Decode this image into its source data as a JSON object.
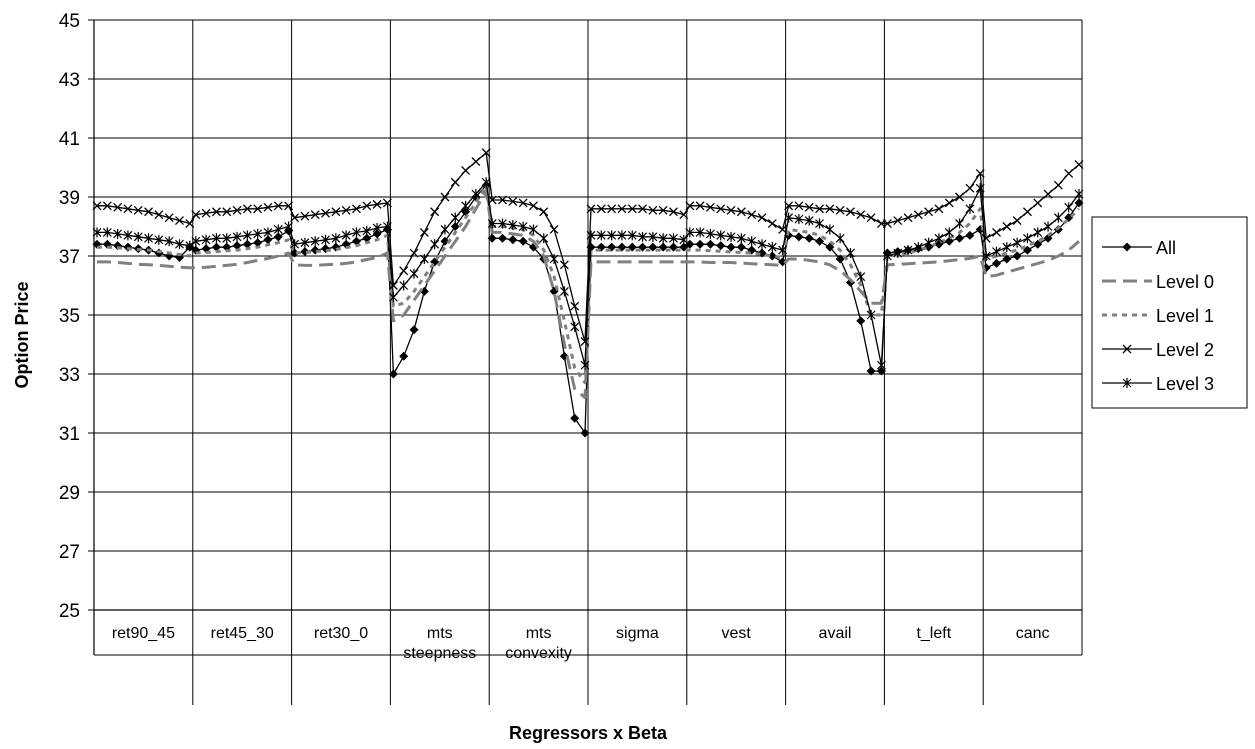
{
  "chart_data": {
    "type": "line",
    "title": "",
    "ylabel": "Option Price",
    "xlabel": "Regressors x Beta",
    "ylim": [
      25,
      45
    ],
    "yticks": [
      25,
      27,
      29,
      31,
      33,
      35,
      37,
      39,
      41,
      43,
      45
    ],
    "grid": true,
    "legend_position": "right",
    "categories": [
      [
        "ret90_45"
      ],
      [
        "ret45_30"
      ],
      [
        "ret30_0"
      ],
      [
        "mts",
        "steepness"
      ],
      [
        "mts",
        "convexity"
      ],
      [
        "sigma"
      ],
      [
        "vest"
      ],
      [
        "avail"
      ],
      [
        "t_left"
      ],
      [
        "canc"
      ]
    ],
    "series": [
      {
        "name": "All",
        "marker": "diamond",
        "style": "solid",
        "color": "#000000",
        "groups": [
          [
            37.4,
            37.4,
            37.35,
            37.3,
            37.25,
            37.2,
            37.1,
            37.0,
            36.95,
            37.3
          ],
          [
            37.2,
            37.25,
            37.3,
            37.3,
            37.35,
            37.4,
            37.45,
            37.55,
            37.65,
            37.85
          ],
          [
            37.1,
            37.15,
            37.2,
            37.25,
            37.3,
            37.4,
            37.5,
            37.6,
            37.75,
            37.9
          ],
          [
            33.0,
            33.6,
            34.5,
            35.8,
            36.8,
            37.5,
            38.0,
            38.5,
            39.0,
            39.4
          ],
          [
            37.6,
            37.6,
            37.55,
            37.5,
            37.3,
            36.9,
            35.8,
            33.6,
            31.5,
            31.0
          ],
          [
            37.3,
            37.3,
            37.3,
            37.3,
            37.3,
            37.3,
            37.3,
            37.3,
            37.3,
            37.3
          ],
          [
            37.4,
            37.4,
            37.4,
            37.35,
            37.3,
            37.3,
            37.2,
            37.1,
            37.0,
            36.8
          ],
          [
            37.7,
            37.65,
            37.6,
            37.5,
            37.3,
            36.9,
            36.1,
            34.8,
            33.1,
            33.1
          ],
          [
            37.1,
            37.15,
            37.2,
            37.25,
            37.3,
            37.4,
            37.5,
            37.6,
            37.7,
            37.9
          ],
          [
            36.6,
            36.75,
            36.9,
            37.0,
            37.2,
            37.4,
            37.6,
            37.9,
            38.3,
            38.8
          ]
        ]
      },
      {
        "name": "Level 0",
        "marker": "none",
        "style": "longdash",
        "color": "#808080",
        "groups": [
          [
            36.8,
            36.8,
            36.78,
            36.75,
            36.72,
            36.7,
            36.68,
            36.65,
            36.62,
            36.6
          ],
          [
            36.6,
            36.62,
            36.65,
            36.68,
            36.72,
            36.78,
            36.85,
            36.92,
            37.0,
            37.1
          ],
          [
            36.7,
            36.68,
            36.68,
            36.7,
            36.72,
            36.75,
            36.8,
            36.88,
            36.95,
            37.1
          ],
          [
            34.8,
            35.0,
            35.5,
            36.0,
            36.5,
            37.0,
            37.5,
            38.0,
            38.6,
            39.2
          ],
          [
            37.8,
            37.8,
            37.75,
            37.7,
            37.5,
            37.0,
            35.8,
            34.0,
            32.5,
            32.2
          ],
          [
            36.8,
            36.8,
            36.8,
            36.8,
            36.8,
            36.8,
            36.8,
            36.8,
            36.8,
            36.8
          ],
          [
            36.8,
            36.8,
            36.78,
            36.78,
            36.78,
            36.76,
            36.74,
            36.72,
            36.7,
            36.68
          ],
          [
            36.9,
            36.9,
            36.85,
            36.8,
            36.7,
            36.5,
            36.2,
            35.8,
            35.4,
            35.4
          ],
          [
            36.7,
            36.72,
            36.74,
            36.76,
            36.78,
            36.8,
            36.84,
            36.88,
            36.92,
            37.0
          ],
          [
            36.3,
            36.35,
            36.45,
            36.55,
            36.65,
            36.75,
            36.85,
            37.0,
            37.2,
            37.5
          ]
        ]
      },
      {
        "name": "Level 1",
        "marker": "none",
        "style": "dash",
        "color": "#808080",
        "groups": [
          [
            37.3,
            37.3,
            37.28,
            37.25,
            37.22,
            37.2,
            37.15,
            37.1,
            37.05,
            37.0
          ],
          [
            37.1,
            37.12,
            37.15,
            37.18,
            37.2,
            37.25,
            37.3,
            37.38,
            37.45,
            37.55
          ],
          [
            37.1,
            37.12,
            37.15,
            37.18,
            37.22,
            37.28,
            37.35,
            37.45,
            37.55,
            37.7
          ],
          [
            35.3,
            35.4,
            35.8,
            36.3,
            36.8,
            37.3,
            37.8,
            38.3,
            38.8,
            39.4
          ],
          [
            38.0,
            38.0,
            37.95,
            37.9,
            37.7,
            37.2,
            36.3,
            34.8,
            33.2,
            32.7
          ],
          [
            37.2,
            37.2,
            37.2,
            37.2,
            37.2,
            37.2,
            37.2,
            37.2,
            37.2,
            37.2
          ],
          [
            37.2,
            37.2,
            37.18,
            37.16,
            37.14,
            37.12,
            37.1,
            37.05,
            37.0,
            36.95
          ],
          [
            37.9,
            37.85,
            37.8,
            37.7,
            37.5,
            37.2,
            36.7,
            36.0,
            35.0,
            35.0
          ],
          [
            37.0,
            37.05,
            37.1,
            37.2,
            37.3,
            37.45,
            37.6,
            37.8,
            38.1,
            38.6
          ],
          [
            36.9,
            37.0,
            37.1,
            37.2,
            37.35,
            37.5,
            37.7,
            37.95,
            38.25,
            38.6
          ]
        ]
      },
      {
        "name": "Level 2",
        "marker": "x",
        "style": "solid",
        "color": "#000000",
        "groups": [
          [
            38.7,
            38.7,
            38.65,
            38.6,
            38.55,
            38.5,
            38.4,
            38.3,
            38.2,
            38.1
          ],
          [
            38.4,
            38.45,
            38.5,
            38.5,
            38.55,
            38.6,
            38.6,
            38.65,
            38.7,
            38.7
          ],
          [
            38.3,
            38.35,
            38.4,
            38.45,
            38.5,
            38.55,
            38.6,
            38.7,
            38.75,
            38.8
          ],
          [
            36.0,
            36.5,
            37.1,
            37.8,
            38.5,
            39.0,
            39.5,
            39.9,
            40.2,
            40.5
          ],
          [
            38.9,
            38.9,
            38.85,
            38.8,
            38.7,
            38.5,
            37.9,
            36.7,
            35.3,
            34.1
          ],
          [
            38.6,
            38.6,
            38.6,
            38.6,
            38.6,
            38.6,
            38.55,
            38.55,
            38.5,
            38.4
          ],
          [
            38.7,
            38.7,
            38.65,
            38.6,
            38.55,
            38.5,
            38.4,
            38.3,
            38.1,
            37.9
          ],
          [
            38.7,
            38.7,
            38.65,
            38.6,
            38.6,
            38.55,
            38.5,
            38.4,
            38.3,
            38.1
          ],
          [
            38.1,
            38.2,
            38.3,
            38.4,
            38.5,
            38.6,
            38.8,
            39.0,
            39.3,
            39.8
          ],
          [
            37.6,
            37.8,
            38.0,
            38.2,
            38.5,
            38.8,
            39.1,
            39.4,
            39.8,
            40.1
          ]
        ]
      },
      {
        "name": "Level 3",
        "marker": "asterisk",
        "style": "solid",
        "color": "#000000",
        "groups": [
          [
            37.8,
            37.8,
            37.75,
            37.7,
            37.65,
            37.6,
            37.55,
            37.5,
            37.4,
            37.35
          ],
          [
            37.5,
            37.55,
            37.6,
            37.6,
            37.65,
            37.7,
            37.75,
            37.8,
            37.9,
            38.0
          ],
          [
            37.4,
            37.45,
            37.5,
            37.55,
            37.6,
            37.7,
            37.8,
            37.85,
            37.95,
            38.0
          ],
          [
            35.6,
            36.0,
            36.4,
            36.9,
            37.4,
            37.9,
            38.3,
            38.7,
            39.1,
            39.5
          ],
          [
            38.1,
            38.1,
            38.05,
            38.0,
            37.9,
            37.6,
            36.9,
            35.8,
            34.6,
            33.3
          ],
          [
            37.7,
            37.7,
            37.7,
            37.7,
            37.7,
            37.65,
            37.65,
            37.6,
            37.6,
            37.55
          ],
          [
            37.8,
            37.8,
            37.75,
            37.7,
            37.65,
            37.6,
            37.5,
            37.4,
            37.3,
            37.2
          ],
          [
            38.3,
            38.25,
            38.2,
            38.1,
            37.9,
            37.6,
            37.1,
            36.3,
            35.0,
            33.3
          ],
          [
            37.0,
            37.1,
            37.2,
            37.3,
            37.45,
            37.6,
            37.8,
            38.1,
            38.6,
            39.3
          ],
          [
            37.0,
            37.15,
            37.3,
            37.45,
            37.6,
            37.8,
            38.0,
            38.3,
            38.65,
            39.1
          ]
        ]
      }
    ]
  }
}
